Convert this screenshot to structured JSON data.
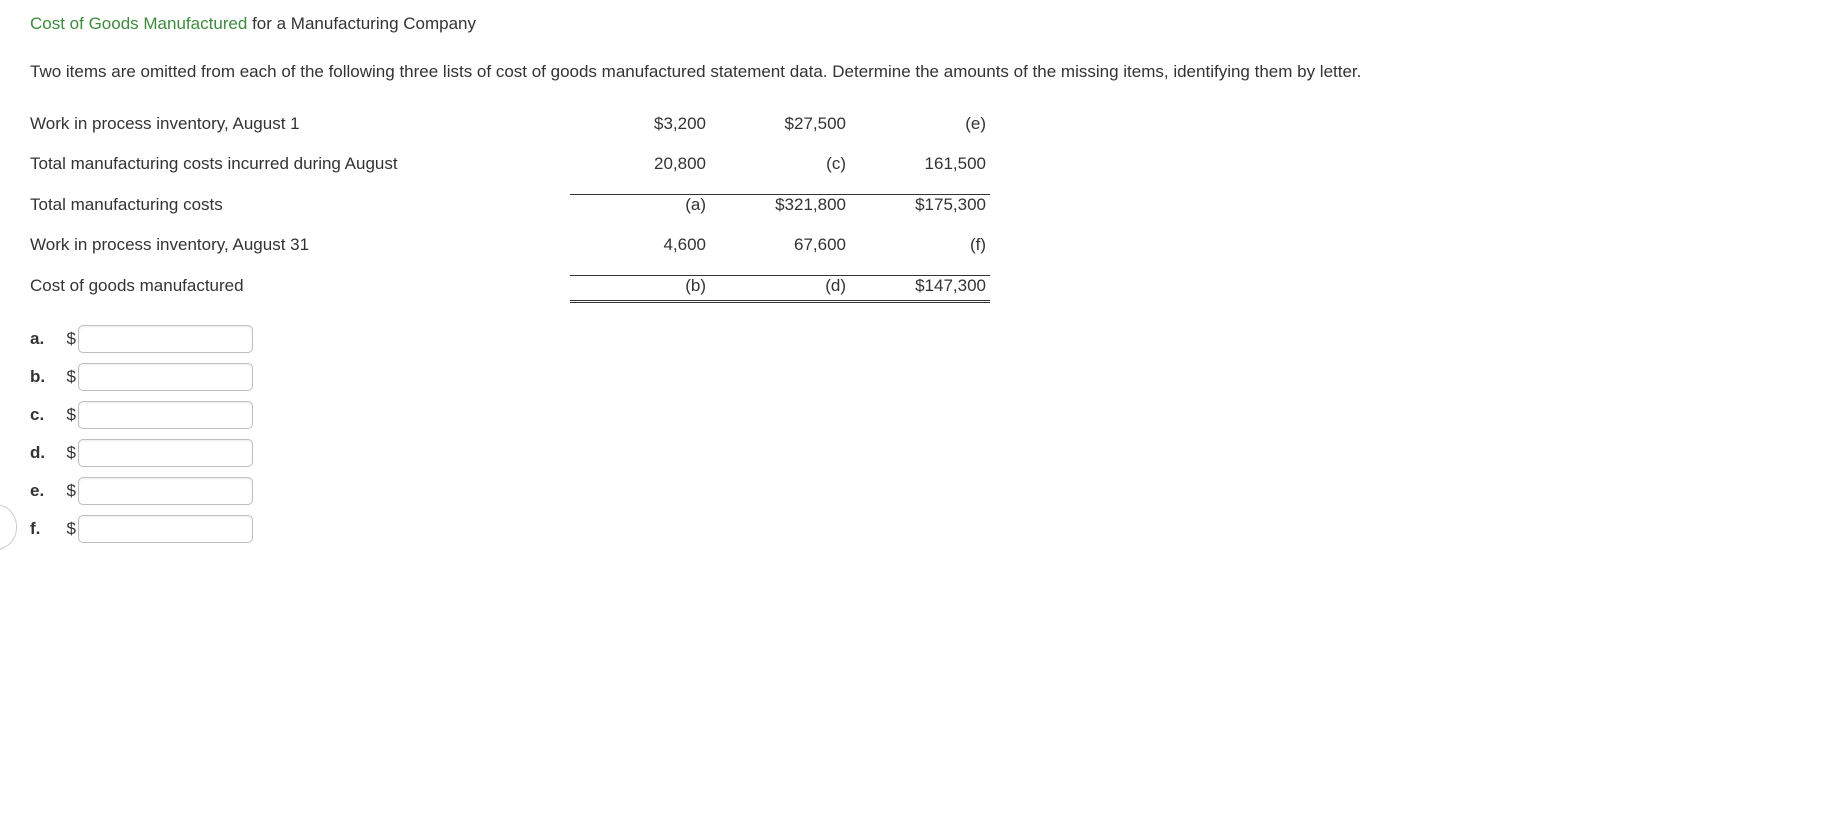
{
  "heading": {
    "link_text": "Cost of Goods Manufactured",
    "rest_text": " for a Manufacturing Company"
  },
  "intro": "Two items are omitted from each of the following three lists of cost of goods manufactured statement data. Determine the amounts of the missing items, identifying them by letter.",
  "table": {
    "rows": [
      {
        "label": "Work in process inventory, August 1",
        "c1": "$3,200",
        "c2": "$27,500",
        "c3": "(e)",
        "c1_top": false,
        "c2_top": false,
        "c3_top": false,
        "c1_dbl": false,
        "c2_dbl": false,
        "c3_dbl": false
      },
      {
        "label": "Total manufacturing costs incurred during August",
        "c1": "20,800",
        "c2": "(c)",
        "c3": "161,500",
        "c1_top": false,
        "c2_top": false,
        "c3_top": false,
        "c1_dbl": false,
        "c2_dbl": false,
        "c3_dbl": false
      },
      {
        "label": "Total manufacturing costs",
        "c1": "(a)",
        "c2": "$321,800",
        "c3": "$175,300",
        "c1_top": true,
        "c2_top": true,
        "c3_top": true,
        "c1_dbl": false,
        "c2_dbl": false,
        "c3_dbl": false
      },
      {
        "label": "Work in process inventory, August 31",
        "c1": "4,600",
        "c2": "67,600",
        "c3": "(f)",
        "c1_top": false,
        "c2_top": false,
        "c3_top": false,
        "c1_dbl": false,
        "c2_dbl": false,
        "c3_dbl": false
      },
      {
        "label": "Cost of goods manufactured",
        "c1": "(b)",
        "c2": "(d)",
        "c3": "$147,300",
        "c1_top": false,
        "c2_top": false,
        "c3_top": false,
        "c1_dbl": true,
        "c2_dbl": true,
        "c3_dbl": true
      }
    ]
  },
  "answers": [
    {
      "letter": "a.",
      "currency": "$",
      "value": ""
    },
    {
      "letter": "b.",
      "currency": "$",
      "value": ""
    },
    {
      "letter": "c.",
      "currency": "$",
      "value": ""
    },
    {
      "letter": "d.",
      "currency": "$",
      "value": ""
    },
    {
      "letter": "e.",
      "currency": "$",
      "value": ""
    },
    {
      "letter": "f.",
      "currency": "$",
      "value": ""
    }
  ],
  "colors": {
    "link": "#3d8b3d",
    "text": "#333333",
    "border": "#333333",
    "input_border": "#bfbfbf",
    "background": "#ffffff"
  }
}
